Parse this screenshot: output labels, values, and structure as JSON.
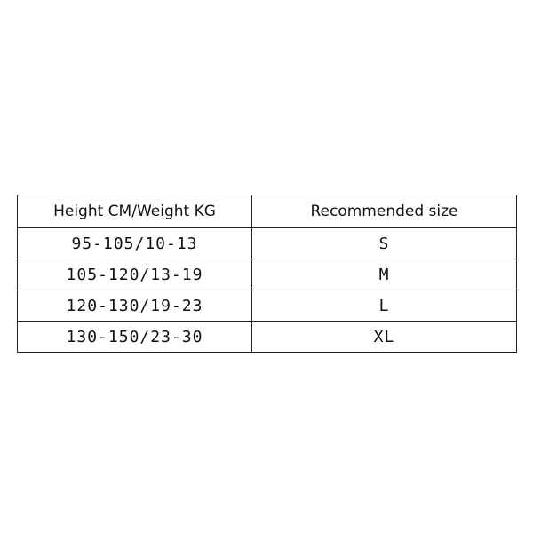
{
  "table": {
    "header": [
      "Height CM/Weight KG",
      "Recommended size"
    ],
    "rows": [
      [
        "95-105/10-13",
        "S"
      ],
      [
        "105-120/13-19",
        "M"
      ],
      [
        "120-130/19-23",
        "L"
      ],
      [
        "130-150/23-30",
        "XL"
      ]
    ]
  }
}
